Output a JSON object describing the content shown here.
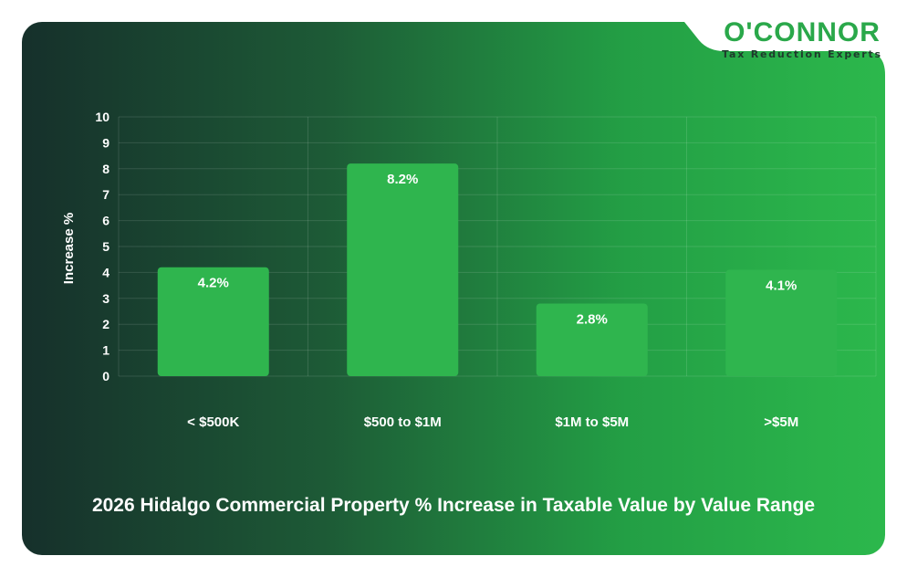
{
  "logo": {
    "name": "O'CONNOR",
    "tagline": "Tax Reduction Experts"
  },
  "colors": {
    "bar": "#2fb54e",
    "text": "#ffffff",
    "grid": "rgba(255,255,255,0.12)",
    "brand": "#2aa84a"
  },
  "chart_data": {
    "type": "bar",
    "title": "2026 Hidalgo Commercial Property % Increase in Taxable Value by Value Range",
    "xlabel": "",
    "ylabel": "Increase %",
    "ylim": [
      0,
      10
    ],
    "yticks": [
      "0",
      "1",
      "2",
      "3",
      "4",
      "5",
      "6",
      "7",
      "8",
      "9",
      "10"
    ],
    "categories": [
      "< $500K",
      "$500 to $1M",
      "$1M to $5M",
      ">$5M"
    ],
    "values": [
      4.2,
      8.2,
      2.8,
      4.1
    ],
    "value_labels": [
      "4.2%",
      "8.2%",
      "2.8%",
      "4.1%"
    ],
    "grid": true,
    "legend": "none"
  }
}
